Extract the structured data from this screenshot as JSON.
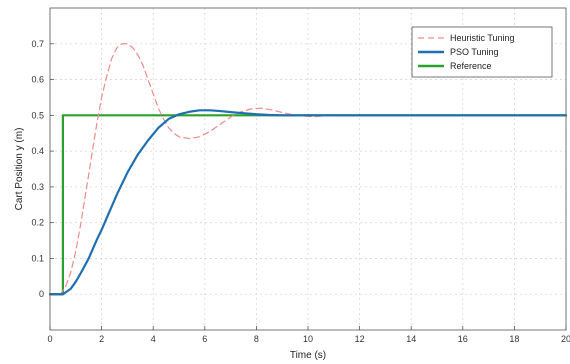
{
  "chart_data": {
    "type": "line",
    "xlabel": "Time (s)",
    "ylabel": "Cart Position y (m)",
    "xlim": [
      0,
      20
    ],
    "ylim": [
      -0.1,
      0.8
    ],
    "xticks": [
      0,
      2,
      4,
      6,
      8,
      10,
      12,
      14,
      16,
      18,
      20
    ],
    "yticks": [
      0,
      0.1,
      0.2,
      0.3,
      0.4,
      0.5,
      0.6,
      0.7
    ],
    "grid": true,
    "legend_position": "top-right",
    "series": [
      {
        "name": "Heuristic Tuning",
        "color": "#f08a8a",
        "style": "dashed",
        "x": [
          0,
          0.4,
          0.6,
          0.8,
          1.0,
          1.2,
          1.4,
          1.6,
          1.8,
          2.0,
          2.2,
          2.4,
          2.6,
          2.8,
          3.0,
          3.2,
          3.4,
          3.6,
          3.8,
          4.0,
          4.2,
          4.4,
          4.6,
          4.8,
          5.0,
          5.4,
          5.8,
          6.2,
          6.6,
          7.0,
          7.4,
          7.8,
          8.2,
          8.6,
          9.0,
          9.4,
          9.8,
          10.2,
          10.6,
          11.0,
          11.4,
          11.8,
          12.2,
          20
        ],
        "y": [
          0,
          0,
          0.02,
          0.06,
          0.12,
          0.2,
          0.29,
          0.38,
          0.47,
          0.55,
          0.61,
          0.66,
          0.69,
          0.7,
          0.7,
          0.69,
          0.67,
          0.64,
          0.6,
          0.56,
          0.52,
          0.49,
          0.465,
          0.45,
          0.44,
          0.435,
          0.44,
          0.455,
          0.475,
          0.495,
          0.51,
          0.518,
          0.52,
          0.515,
          0.508,
          0.502,
          0.498,
          0.496,
          0.498,
          0.5,
          0.501,
          0.5,
          0.5,
          0.5
        ]
      },
      {
        "name": "PSO Tuning",
        "color": "#1f6fb2",
        "style": "solid",
        "x": [
          0,
          0.5,
          0.8,
          1.0,
          1.2,
          1.5,
          1.8,
          2.0,
          2.3,
          2.6,
          3.0,
          3.4,
          3.8,
          4.2,
          4.6,
          5.0,
          5.4,
          5.8,
          6.2,
          6.6,
          7.0,
          7.5,
          8.0,
          8.5,
          9.0,
          10.0,
          11.0,
          20
        ],
        "y": [
          0,
          0,
          0.015,
          0.035,
          0.06,
          0.1,
          0.15,
          0.18,
          0.23,
          0.28,
          0.34,
          0.39,
          0.43,
          0.465,
          0.49,
          0.503,
          0.51,
          0.514,
          0.514,
          0.512,
          0.509,
          0.506,
          0.503,
          0.501,
          0.5,
          0.5,
          0.5,
          0.5
        ]
      },
      {
        "name": "Reference",
        "color": "#2ca02c",
        "style": "solid",
        "x": [
          0,
          0.5,
          0.5,
          20
        ],
        "y": [
          0,
          0,
          0.5,
          0.5
        ]
      }
    ]
  }
}
